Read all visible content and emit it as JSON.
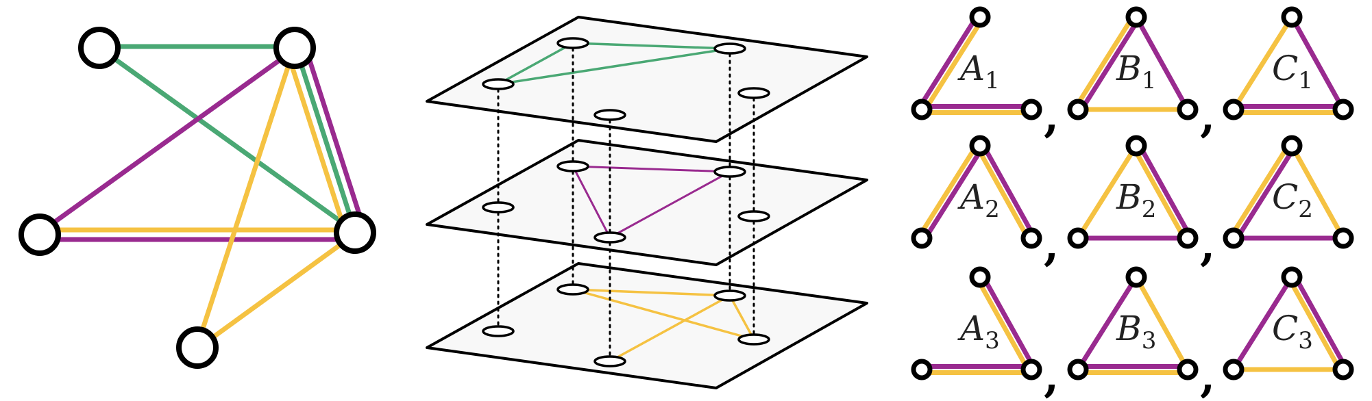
{
  "colors": {
    "green": "#4aa874",
    "purple": "#992a8f",
    "yellow": "#f5c242",
    "node_stroke": "#000000",
    "plane_fill": "#f8f8f8"
  },
  "multigraph": {
    "nodes": [
      "n1",
      "n2",
      "n3",
      "n4",
      "n5"
    ],
    "layer_edges": [
      {
        "layer": "green",
        "pairs": [
          [
            "n1",
            "n2"
          ],
          [
            "n1",
            "n4"
          ],
          [
            "n2",
            "n4"
          ]
        ]
      },
      {
        "layer": "purple",
        "pairs": [
          [
            "n2",
            "n3"
          ],
          [
            "n2",
            "n4"
          ],
          [
            "n3",
            "n4"
          ]
        ]
      },
      {
        "layer": "yellow",
        "pairs": [
          [
            "n2",
            "n4"
          ],
          [
            "n2",
            "n5"
          ],
          [
            "n3",
            "n4"
          ],
          [
            "n4",
            "n5"
          ]
        ]
      }
    ]
  },
  "motifs": {
    "rows": [
      {
        "labels": [
          {
            "letter": "A",
            "sub": "1"
          },
          {
            "letter": "B",
            "sub": "1"
          },
          {
            "letter": "C",
            "sub": "1"
          }
        ]
      },
      {
        "labels": [
          {
            "letter": "A",
            "sub": "2"
          },
          {
            "letter": "B",
            "sub": "2"
          },
          {
            "letter": "C",
            "sub": "2"
          }
        ]
      },
      {
        "labels": [
          {
            "letter": "A",
            "sub": "3"
          },
          {
            "letter": "B",
            "sub": "3"
          },
          {
            "letter": "C",
            "sub": "3"
          }
        ]
      }
    ],
    "separator": ","
  }
}
